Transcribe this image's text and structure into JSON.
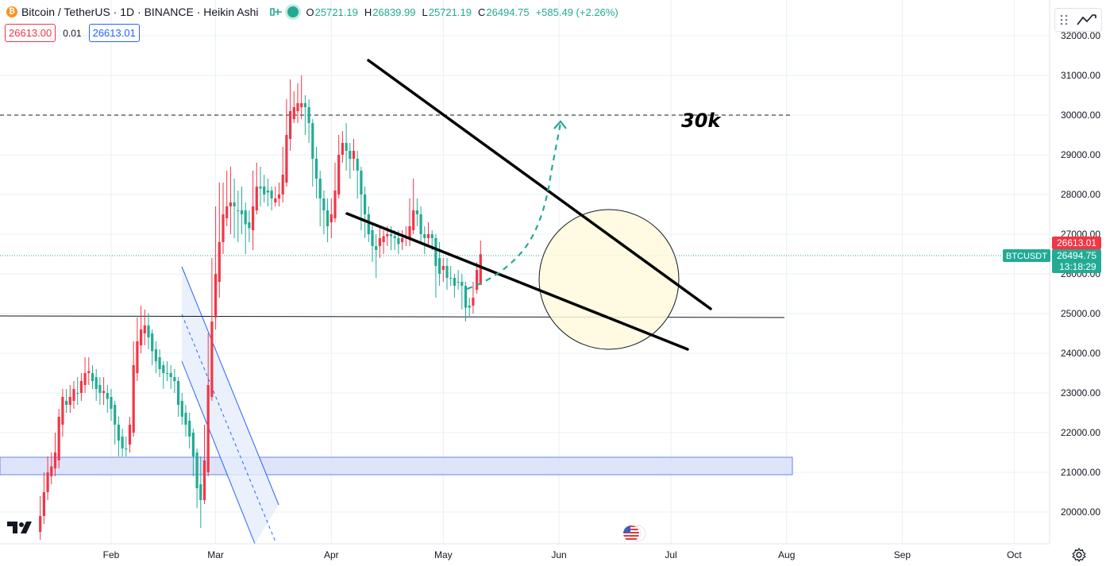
{
  "header": {
    "symbol_title": "Bitcoin / TetherUS · 1D · BINANCE · Heikin Ashi",
    "ohlc": [
      {
        "key": "O",
        "value": "25721.19"
      },
      {
        "key": "H",
        "value": "26839.99"
      },
      {
        "key": "L",
        "value": "25721.19"
      },
      {
        "key": "C",
        "value": "26494.75"
      }
    ],
    "change": "+585.49 (+2.26%)"
  },
  "quote": {
    "sell": "26613.00",
    "spread": "0.01",
    "buy": "26613.01"
  },
  "colors": {
    "up": "#22ab94",
    "down": "#f23645",
    "accent": "#2962ff",
    "grid": "#e8f0f6"
  },
  "annotations": {
    "level_label": "30k",
    "ticker_tag": "BTCUSDT"
  },
  "price_tags": {
    "ask": "26613.01",
    "last": "26494.75",
    "countdown": "13:18:29"
  },
  "chart_data": {
    "type": "candlestick",
    "title": "Bitcoin / TetherUS · 1D · BINANCE · Heikin Ashi",
    "y_ticks": [
      "32000.00",
      "31000.00",
      "30000.00",
      "29000.00",
      "28000.00",
      "27000.00",
      "26000.00",
      "25000.00",
      "24000.00",
      "23000.00",
      "22000.00",
      "21000.00",
      "20000.00"
    ],
    "x_ticks": [
      "Feb",
      "Mar",
      "Apr",
      "May",
      "Jun",
      "Jul",
      "Aug",
      "Sep",
      "Oct"
    ],
    "ylim": [
      19250,
      32100
    ],
    "start_date": "2023-01-13",
    "candles": [
      [
        19900,
        19500,
        20400,
        19300
      ],
      [
        20500,
        19900,
        21000,
        19700
      ],
      [
        21000,
        20500,
        21400,
        20300
      ],
      [
        21150,
        20900,
        21500,
        20700
      ],
      [
        21500,
        21100,
        22000,
        20900
      ],
      [
        22400,
        21300,
        22600,
        21100
      ],
      [
        22900,
        22200,
        23100,
        21900
      ],
      [
        22700,
        22800,
        23100,
        22500
      ],
      [
        22900,
        22700,
        23200,
        22500
      ],
      [
        23100,
        22800,
        23300,
        22600
      ],
      [
        23000,
        23000,
        23400,
        22700
      ],
      [
        23300,
        23000,
        23500,
        22800
      ],
      [
        23500,
        23200,
        23900,
        23000
      ],
      [
        23550,
        23500,
        23900,
        23200
      ],
      [
        23300,
        23500,
        23700,
        23100
      ],
      [
        23100,
        23400,
        23600,
        22800
      ],
      [
        23000,
        23200,
        23400,
        22700
      ],
      [
        23050,
        23000,
        23400,
        22700
      ],
      [
        22850,
        23000,
        23200,
        22500
      ],
      [
        22600,
        22900,
        23100,
        22300
      ],
      [
        22200,
        22700,
        22800,
        21700
      ],
      [
        21800,
        22200,
        22400,
        21400
      ],
      [
        21600,
        21900,
        22100,
        21400
      ],
      [
        21600,
        21600,
        21900,
        21400
      ],
      [
        22200,
        21700,
        22400,
        21500
      ],
      [
        23700,
        22000,
        24300,
        21900
      ],
      [
        24300,
        23500,
        24900,
        23300
      ],
      [
        24600,
        24200,
        25200,
        24000
      ],
      [
        24700,
        24500,
        25100,
        24200
      ],
      [
        24400,
        24700,
        25000,
        24100
      ],
      [
        24050,
        24500,
        24600,
        23700
      ],
      [
        23800,
        24100,
        24300,
        23500
      ],
      [
        23600,
        23900,
        24100,
        23400
      ],
      [
        23500,
        23700,
        23800,
        23100
      ],
      [
        23500,
        23500,
        23800,
        23300
      ],
      [
        23400,
        23500,
        23700,
        23100
      ],
      [
        23300,
        23400,
        23600,
        23000
      ],
      [
        22700,
        23300,
        23400,
        22400
      ],
      [
        22400,
        22800,
        23000,
        22200
      ],
      [
        22200,
        22500,
        22700,
        21900
      ],
      [
        21900,
        22300,
        22500,
        21600
      ],
      [
        21400,
        22000,
        22100,
        20900
      ],
      [
        20600,
        21500,
        21600,
        20100
      ],
      [
        20300,
        20700,
        21400,
        19600
      ],
      [
        21300,
        20300,
        22200,
        20200
      ],
      [
        23200,
        21000,
        24500,
        20900
      ],
      [
        24800,
        22900,
        26400,
        22800
      ],
      [
        26000,
        24900,
        27700,
        24600
      ],
      [
        26800,
        25800,
        28300,
        25400
      ],
      [
        27500,
        26800,
        28300,
        26500
      ],
      [
        27700,
        27400,
        28600,
        27200
      ],
      [
        27800,
        27700,
        28700,
        27000
      ],
      [
        27700,
        27800,
        28400,
        26900
      ],
      [
        27600,
        27600,
        28100,
        26800
      ],
      [
        27500,
        27600,
        28200,
        27000
      ],
      [
        27250,
        27600,
        27800,
        26500
      ],
      [
        27150,
        27300,
        27600,
        26800
      ],
      [
        27700,
        27100,
        28600,
        26600
      ],
      [
        28200,
        27600,
        28800,
        27500
      ],
      [
        28150,
        28200,
        28700,
        27700
      ],
      [
        28000,
        28200,
        28500,
        27800
      ],
      [
        28050,
        28100,
        28400,
        27700
      ],
      [
        27900,
        28100,
        28200,
        27600
      ],
      [
        27900,
        27800,
        28200,
        27700
      ],
      [
        28000,
        27900,
        28300,
        27700
      ],
      [
        28500,
        28000,
        29200,
        27800
      ],
      [
        29500,
        28300,
        30400,
        28200
      ],
      [
        30100,
        29400,
        30900,
        29100
      ],
      [
        30200,
        29900,
        30600,
        29800
      ],
      [
        30300,
        30100,
        30800,
        29800
      ],
      [
        30300,
        30200,
        31000,
        29900
      ],
      [
        30200,
        30300,
        30500,
        29500
      ],
      [
        29800,
        30200,
        30400,
        29300
      ],
      [
        28900,
        29800,
        29900,
        28200
      ],
      [
        28400,
        28900,
        29200,
        27900
      ],
      [
        27900,
        28400,
        28600,
        27200
      ],
      [
        27600,
        27900,
        28100,
        27000
      ],
      [
        27200,
        27600,
        27900,
        26800
      ],
      [
        27500,
        27300,
        27900,
        26900
      ],
      [
        28100,
        27400,
        28800,
        27300
      ],
      [
        29000,
        28000,
        29500,
        27900
      ],
      [
        29300,
        29000,
        29600,
        28800
      ],
      [
        29100,
        29300,
        29800,
        28600
      ],
      [
        28900,
        29100,
        29300,
        28400
      ],
      [
        29100,
        28900,
        29400,
        28600
      ],
      [
        28600,
        28900,
        29100,
        27900
      ],
      [
        28000,
        28600,
        28700,
        27100
      ],
      [
        27500,
        28000,
        28200,
        26900
      ],
      [
        27000,
        27500,
        27700,
        26800
      ],
      [
        26700,
        27100,
        27300,
        26300
      ],
      [
        26600,
        26700,
        27000,
        25900
      ],
      [
        26900,
        26700,
        27200,
        26400
      ],
      [
        26950,
        26800,
        27100,
        26500
      ],
      [
        27000,
        26950,
        27200,
        26700
      ],
      [
        26950,
        27000,
        27200,
        26600
      ],
      [
        26900,
        26950,
        27100,
        26600
      ],
      [
        26750,
        26900,
        27100,
        26500
      ],
      [
        26900,
        26800,
        27100,
        26600
      ],
      [
        26950,
        26900,
        27200,
        26700
      ],
      [
        27200,
        26900,
        27900,
        26700
      ],
      [
        27600,
        27100,
        28400,
        27000
      ],
      [
        27500,
        27600,
        27900,
        27200
      ],
      [
        27000,
        27500,
        27700,
        26800
      ],
      [
        26900,
        27000,
        27200,
        26500
      ],
      [
        27000,
        26900,
        27300,
        26700
      ],
      [
        26900,
        27000,
        27100,
        26600
      ],
      [
        26200,
        26900,
        27000,
        25400
      ],
      [
        26000,
        26400,
        26800,
        25700
      ],
      [
        26200,
        26100,
        26400,
        25800
      ],
      [
        25900,
        26200,
        26400,
        25600
      ],
      [
        25900,
        25900,
        26200,
        25700
      ],
      [
        25700,
        25900,
        26000,
        25400
      ],
      [
        25800,
        25800,
        26100,
        25600
      ],
      [
        25700,
        25800,
        26000,
        25100
      ],
      [
        25150,
        25700,
        25800,
        24800
      ],
      [
        25150,
        25200,
        25400,
        24900
      ],
      [
        25400,
        25200,
        25800,
        25000
      ],
      [
        26100,
        25600,
        26300,
        25500
      ],
      [
        26495,
        25721,
        26840,
        25721
      ]
    ]
  }
}
